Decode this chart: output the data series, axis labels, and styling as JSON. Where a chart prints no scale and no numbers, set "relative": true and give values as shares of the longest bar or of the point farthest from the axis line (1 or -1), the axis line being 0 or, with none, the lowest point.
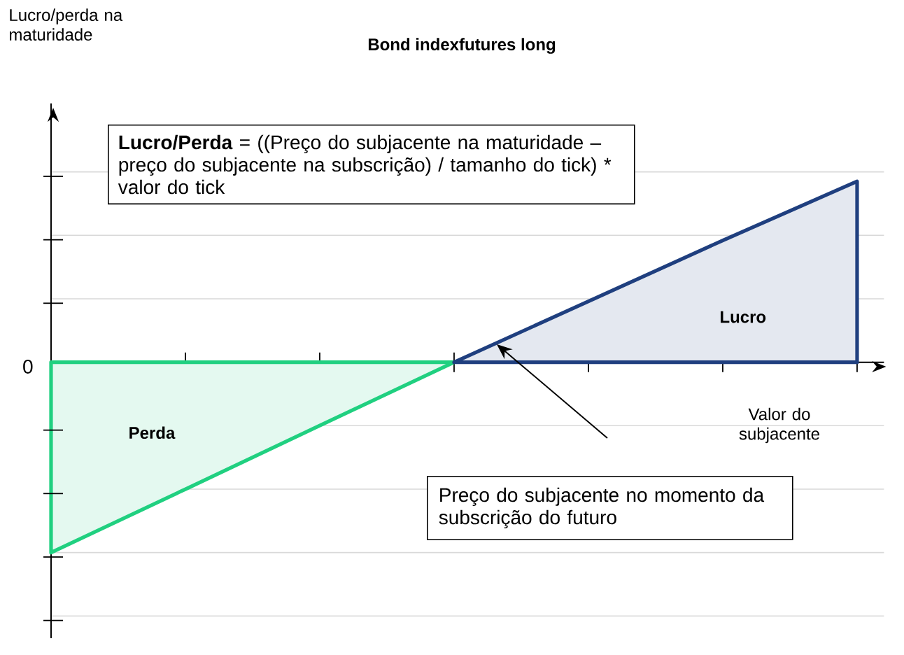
{
  "chart_data": {
    "type": "area",
    "title": "Bond indexfutures long",
    "xlabel": "Valor do subjacente",
    "relative": true,
    "grid": "y",
    "categories": [
      null,
      null,
      null,
      null,
      null,
      null,
      null
    ],
    "series": [
      {
        "name": "Perda",
        "color": "#20d080",
        "values": [
          -1,
          -0.667,
          -0.333,
          0,
          null,
          null,
          null
        ]
      },
      {
        "name": "Lucro",
        "color": "#1f3f7f",
        "values": [
          null,
          null,
          null,
          0,
          0.32,
          0.64,
          0.95
        ]
      }
    ],
    "annotations": [
      "Lucro/perda na maturidade",
      "**Lucro/Perda** = ((Preço do subjacente na maturidade – preço do subjacente na subscrição) / tamanho do tick) * valor do tick",
      "Preço do subjacente no momento da subscrição do futuro",
      "0"
    ]
  }
}
